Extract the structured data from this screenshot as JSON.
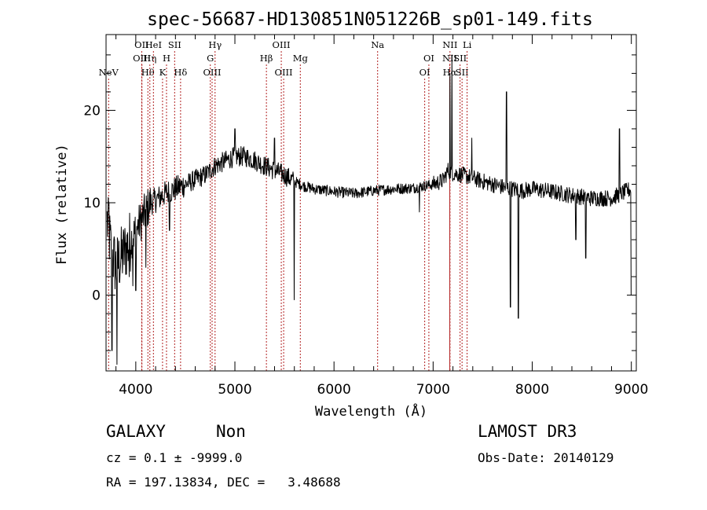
{
  "chart_data": {
    "type": "line",
    "title": "spec-56687-HD130851N051226B_sp01-149.fits",
    "xlabel": "Wavelength (Å)",
    "ylabel": "Flux (relative)",
    "xlim": [
      3700,
      9050
    ],
    "ylim": [
      -8.2,
      28.2
    ],
    "x_ticks": [
      4000,
      5000,
      6000,
      7000,
      8000,
      9000
    ],
    "y_ticks": [
      0,
      10,
      20
    ],
    "line_color": "#000000",
    "marker_color": "#b22222",
    "spectrum_anchors": {
      "x": [
        3710,
        3750,
        3800,
        3850,
        3900,
        3950,
        4000,
        4050,
        4100,
        4150,
        4200,
        4300,
        4400,
        4500,
        4600,
        4700,
        4800,
        4900,
        5000,
        5100,
        5200,
        5300,
        5400,
        5500,
        5600,
        5700,
        5800,
        6000,
        6200,
        6400,
        6600,
        6800,
        6900,
        7000,
        7100,
        7150,
        7200,
        7300,
        7400,
        7500,
        7600,
        7700,
        7800,
        7900,
        8000,
        8200,
        8400,
        8600,
        8800,
        8900,
        9000
      ],
      "y": [
        8,
        5,
        3,
        4,
        5,
        6,
        7,
        8,
        9,
        10,
        10.3,
        11,
        11.5,
        12,
        12.5,
        13,
        14,
        14.5,
        15,
        15,
        14.6,
        14,
        13.5,
        13,
        12.3,
        11.8,
        11.5,
        11.2,
        11.0,
        11.3,
        11.5,
        11.6,
        11.8,
        12.0,
        12.4,
        13.5,
        13.2,
        13.0,
        12.7,
        12.3,
        12.0,
        11.7,
        11.5,
        11.3,
        11.5,
        11.2,
        10.8,
        10.5,
        10.5,
        11.0,
        11.5
      ]
    },
    "features": [
      {
        "x": 3728,
        "y": 10
      },
      {
        "x": 3760,
        "y": -6
      },
      {
        "x": 3810,
        "y": -7.5
      },
      {
        "x": 3935,
        "y": 2
      },
      {
        "x": 3970,
        "y": 1
      },
      {
        "x": 4000,
        "y": 0.5
      },
      {
        "x": 4101,
        "y": 3
      },
      {
        "x": 4340,
        "y": 7
      },
      {
        "x": 5000,
        "y": 18
      },
      {
        "x": 5400,
        "y": 17
      },
      {
        "x": 5598,
        "y": -0.5
      },
      {
        "x": 6863,
        "y": 9
      },
      {
        "x": 7170,
        "y": 24
      },
      {
        "x": 7190,
        "y": 26
      },
      {
        "x": 7390,
        "y": 17
      },
      {
        "x": 7740,
        "y": 22
      },
      {
        "x": 7780,
        "y": -1.3
      },
      {
        "x": 7860,
        "y": -2.5
      },
      {
        "x": 8440,
        "y": 6
      },
      {
        "x": 8540,
        "y": 4
      },
      {
        "x": 8880,
        "y": 18
      },
      {
        "x": 9000,
        "y": 0
      }
    ],
    "lines": [
      {
        "label": "NeV",
        "x": 3726,
        "row": 3
      },
      {
        "label": "OII",
        "x": 4060,
        "row": 1
      },
      {
        "label": "OIII",
        "x": 4062,
        "row": 2
      },
      {
        "label": "Hθ",
        "x": 4122,
        "row": 3
      },
      {
        "label": "Hη",
        "x": 4142,
        "row": 2
      },
      {
        "label": "HeI",
        "x": 4178,
        "row": 1
      },
      {
        "label": "K",
        "x": 4270,
        "row": 3
      },
      {
        "label": "H",
        "x": 4310,
        "row": 2
      },
      {
        "label": "SII",
        "x": 4392,
        "row": 1
      },
      {
        "label": "Hδ",
        "x": 4452,
        "row": 3
      },
      {
        "label": "Hγ",
        "x": 4800,
        "row": 1
      },
      {
        "label": "G",
        "x": 4752,
        "row": 2
      },
      {
        "label": "OIII",
        "x": 4770,
        "row": 3
      },
      {
        "label": "Hβ",
        "x": 5318,
        "row": 2
      },
      {
        "label": "OIII",
        "x": 5468,
        "row": 1
      },
      {
        "label": "OIII",
        "x": 5492,
        "row": 3
      },
      {
        "label": "Mg",
        "x": 5660,
        "row": 2
      },
      {
        "label": "Na",
        "x": 6440,
        "row": 1
      },
      {
        "label": "OI",
        "x": 6957,
        "row": 2
      },
      {
        "label": "OI",
        "x": 6915,
        "row": 3
      },
      {
        "label": "NII",
        "x": 7170,
        "row": 1
      },
      {
        "label": "NII",
        "x": 7168,
        "row": 2
      },
      {
        "label": "Hα",
        "x": 7168,
        "row": 3
      },
      {
        "label": "SII",
        "x": 7272,
        "row": 2
      },
      {
        "label": "SII",
        "x": 7292,
        "row": 3
      },
      {
        "label": "Li",
        "x": 7343,
        "row": 1
      }
    ]
  },
  "info": {
    "class": "GALAXY",
    "subclass": "Non",
    "cz": "cz = 0.1 ± -9999.0",
    "radec": "RA = 197.13834, DEC =   3.48688",
    "survey": "LAMOST DR3",
    "obs_date": "Obs-Date: 20140129"
  }
}
